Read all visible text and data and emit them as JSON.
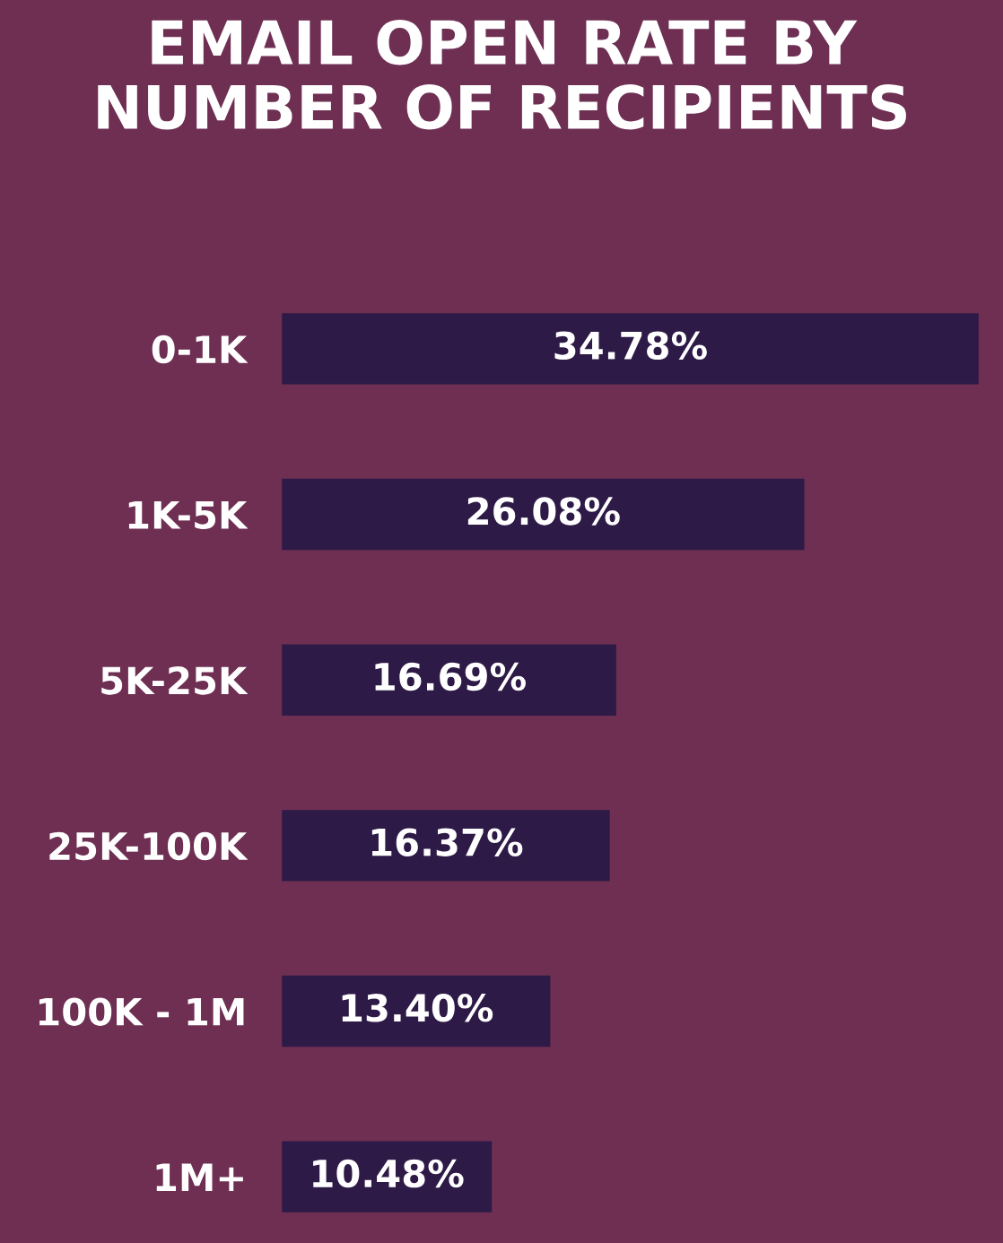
{
  "chart_data": {
    "type": "bar",
    "orientation": "horizontal",
    "title": "EMAIL OPEN RATE BY\nNUMBER OF RECIPIENTS",
    "categories": [
      "0-1K",
      "1K-5K",
      "5K-25K",
      "25K-100K",
      "100K - 1M",
      "1M+"
    ],
    "values": [
      34.78,
      26.08,
      16.69,
      16.37,
      13.4,
      10.48
    ],
    "value_labels": [
      "34.78%",
      "26.08%",
      "16.69%",
      "16.37%",
      "13.40%",
      "10.48%"
    ],
    "color": "#2e1a47",
    "grid": false,
    "legend": false
  }
}
